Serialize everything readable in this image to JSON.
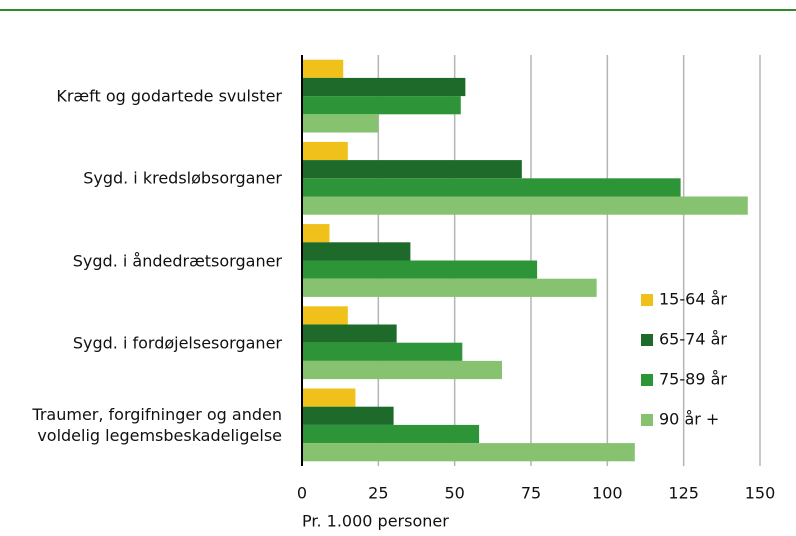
{
  "chart_data": {
    "type": "barh",
    "categories": [
      "Kræft og godartede svulster",
      "Sygd. i kredsløbsorganer",
      "Sygd. i åndedrætsorganer",
      "Sygd. i fordøjelsesorganer",
      "Traumer, forgifninger og anden voldelig legemsbeskadeligelse"
    ],
    "series": [
      {
        "name": "15-64 år",
        "color": "#efc11a",
        "values": [
          13.5,
          15,
          9,
          15,
          17.5
        ]
      },
      {
        "name": "65-74 år",
        "color": "#1e6a2b",
        "values": [
          53.5,
          72,
          35.5,
          31,
          30
        ]
      },
      {
        "name": "75-89 år",
        "color": "#2e9438",
        "values": [
          52,
          124,
          77,
          52.5,
          58
        ]
      },
      {
        "name": "90 år +",
        "color": "#86c26f",
        "values": [
          25,
          146,
          96.5,
          65.5,
          109
        ]
      }
    ],
    "xlabel": "Pr. 1.000 personer",
    "xlim": [
      0,
      150
    ],
    "xticks": [
      0,
      25,
      50,
      75,
      100,
      125,
      150
    ],
    "grid": true,
    "legend": "right"
  }
}
